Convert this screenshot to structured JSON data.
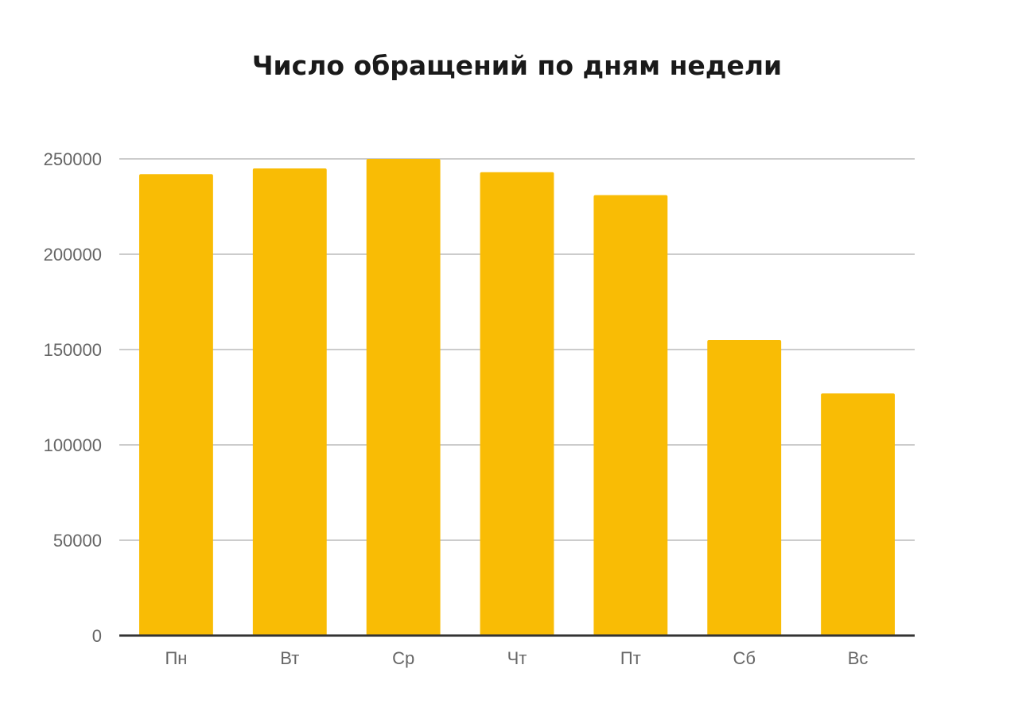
{
  "chart_data": {
    "type": "bar",
    "title": "Число обращений по дням недели",
    "xlabel": "",
    "ylabel": "",
    "categories": [
      "Пн",
      "Вт",
      "Ср",
      "Чт",
      "Пт",
      "Сб",
      "Вс"
    ],
    "values": [
      242000,
      245000,
      250000,
      243000,
      231000,
      155000,
      127000
    ],
    "ylim": [
      0,
      250000
    ],
    "yticks": [
      "0",
      "50000",
      "100000",
      "150000",
      "200000",
      "250000"
    ],
    "grid": true,
    "legend": "none",
    "colors": {
      "bar": "#F9BC05",
      "grid": "#CCCCCC",
      "axis": "#333333",
      "tick_text": "#666666",
      "title_text": "#1A1A1A"
    }
  }
}
